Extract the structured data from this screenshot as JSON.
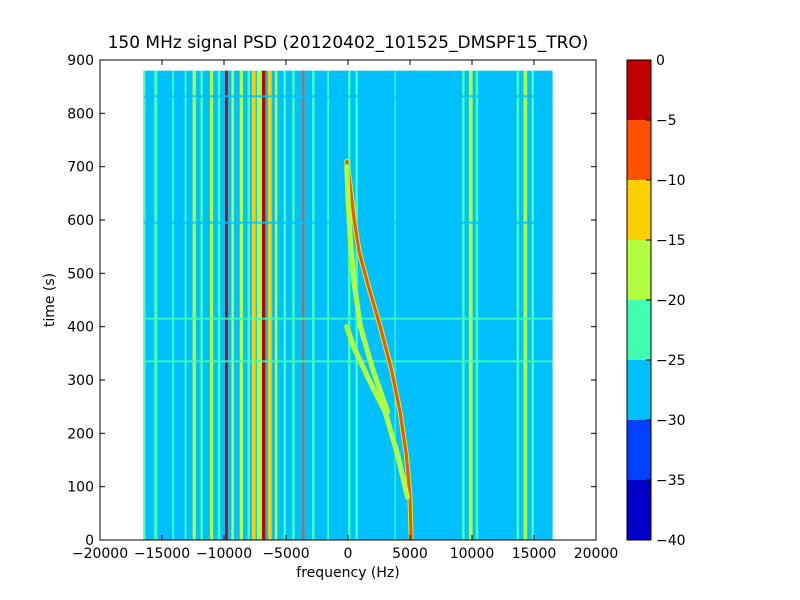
{
  "chart_data": {
    "type": "heatmap",
    "title": "150 MHz signal PSD (20120402_101525_DMSPF15_TRO)",
    "xlabel": "frequency (Hz)",
    "ylabel": "time (s)",
    "xlim": [
      -20000,
      20000
    ],
    "ylim": [
      0,
      900
    ],
    "xticks": [
      -20000,
      -15000,
      -10000,
      -5000,
      0,
      5000,
      10000,
      15000,
      20000
    ],
    "xtick_labels": [
      "−20000",
      "−15000",
      "−10000",
      "−5000",
      "0",
      "5000",
      "10000",
      "15000",
      "20000"
    ],
    "yticks": [
      0,
      100,
      200,
      300,
      400,
      500,
      600,
      700,
      800,
      900
    ],
    "ytick_labels": [
      "0",
      "100",
      "200",
      "300",
      "400",
      "500",
      "600",
      "700",
      "800",
      "900"
    ],
    "data_extent": {
      "x": [
        -16500,
        16500
      ],
      "y": [
        0,
        880
      ]
    },
    "background_level": -27.5,
    "colorbar": {
      "levels": [
        -40,
        -35,
        -30,
        -25,
        -20,
        -15,
        -10,
        -5,
        0
      ],
      "tick_labels": [
        "−40",
        "−35",
        "−30",
        "−25",
        "−20",
        "−15",
        "−10",
        "−5",
        "0"
      ],
      "colors": [
        "#0000c8",
        "#0040ff",
        "#00c0ff",
        "#40ffb0",
        "#b0ff40",
        "#ffd000",
        "#ff5000",
        "#c00000"
      ]
    },
    "vertical_lines": [
      {
        "freq": -16400,
        "width": 150,
        "level": -22.5
      },
      {
        "freq": -15500,
        "width": 260,
        "level": -22.5
      },
      {
        "freq": -14100,
        "width": 150,
        "level": -22.5
      },
      {
        "freq": -13100,
        "width": 150,
        "level": -22.5
      },
      {
        "freq": -12400,
        "width": 260,
        "level": -17.5
      },
      {
        "freq": -11800,
        "width": 200,
        "level": -22.5
      },
      {
        "freq": -11000,
        "width": 260,
        "level": -17.5
      },
      {
        "freq": -10400,
        "width": 200,
        "level": -22.5
      },
      {
        "freq": -9800,
        "width": 220,
        "level": -2.5
      },
      {
        "freq": -9300,
        "width": 200,
        "level": -17.5
      },
      {
        "freq": -8600,
        "width": 260,
        "level": -17.5
      },
      {
        "freq": -8000,
        "width": 200,
        "level": -22.5
      },
      {
        "freq": -7600,
        "width": 300,
        "level": -12.5
      },
      {
        "freq": -7150,
        "width": 400,
        "level": -17.5
      },
      {
        "freq": -6800,
        "width": 260,
        "level": -2.5
      },
      {
        "freq": -6300,
        "width": 300,
        "level": -12.5
      },
      {
        "freq": -5800,
        "width": 200,
        "level": -17.5
      },
      {
        "freq": -5100,
        "width": 200,
        "level": -22.5
      },
      {
        "freq": -4400,
        "width": 200,
        "level": -22.5
      },
      {
        "freq": -3600,
        "width": 150,
        "level": -7.5
      },
      {
        "freq": -2800,
        "width": 200,
        "level": -22.5
      },
      {
        "freq": -1600,
        "width": 150,
        "level": -22.5
      },
      {
        "freq": 100,
        "width": 200,
        "level": -22.5
      },
      {
        "freq": 700,
        "width": 200,
        "level": -22.5
      },
      {
        "freq": 3800,
        "width": 100,
        "level": -22.5
      },
      {
        "freq": 9300,
        "width": 200,
        "level": -22.5
      },
      {
        "freq": 9900,
        "width": 300,
        "level": -17.5
      },
      {
        "freq": 10400,
        "width": 200,
        "level": -22.5
      },
      {
        "freq": 13700,
        "width": 200,
        "level": -22.5
      },
      {
        "freq": 14300,
        "width": 300,
        "level": -17.5
      },
      {
        "freq": 14900,
        "width": 200,
        "level": -22.5
      }
    ],
    "horizontal_lines": [
      {
        "time": 335,
        "level": -22.5
      },
      {
        "time": 415,
        "level": -22.5
      },
      {
        "time": 595,
        "level": -25.0
      },
      {
        "time": 832,
        "level": -25.0
      }
    ],
    "curves": [
      {
        "name": "",
        "level": -7.5,
        "width": 250,
        "points": [
          [
            5100,
            0
          ],
          [
            5000,
            80
          ],
          [
            4700,
            160
          ],
          [
            4200,
            240
          ],
          [
            3500,
            320
          ],
          [
            2600,
            400
          ],
          [
            1600,
            480
          ],
          [
            900,
            540
          ],
          [
            500,
            600
          ],
          [
            200,
            660
          ],
          [
            -100,
            710
          ]
        ]
      },
      {
        "name": "",
        "level": -17.5,
        "width": 250,
        "points": [
          [
            4800,
            80
          ],
          [
            4000,
            160
          ],
          [
            3000,
            240
          ],
          [
            1700,
            300
          ],
          [
            500,
            360
          ],
          [
            -100,
            400
          ]
        ]
      },
      {
        "name": "",
        "level": -17.5,
        "width": 250,
        "points": [
          [
            3200,
            240
          ],
          [
            2000,
            320
          ],
          [
            1000,
            400
          ],
          [
            500,
            480
          ],
          [
            200,
            560
          ],
          [
            0,
            640
          ],
          [
            -100,
            700
          ]
        ]
      }
    ]
  }
}
